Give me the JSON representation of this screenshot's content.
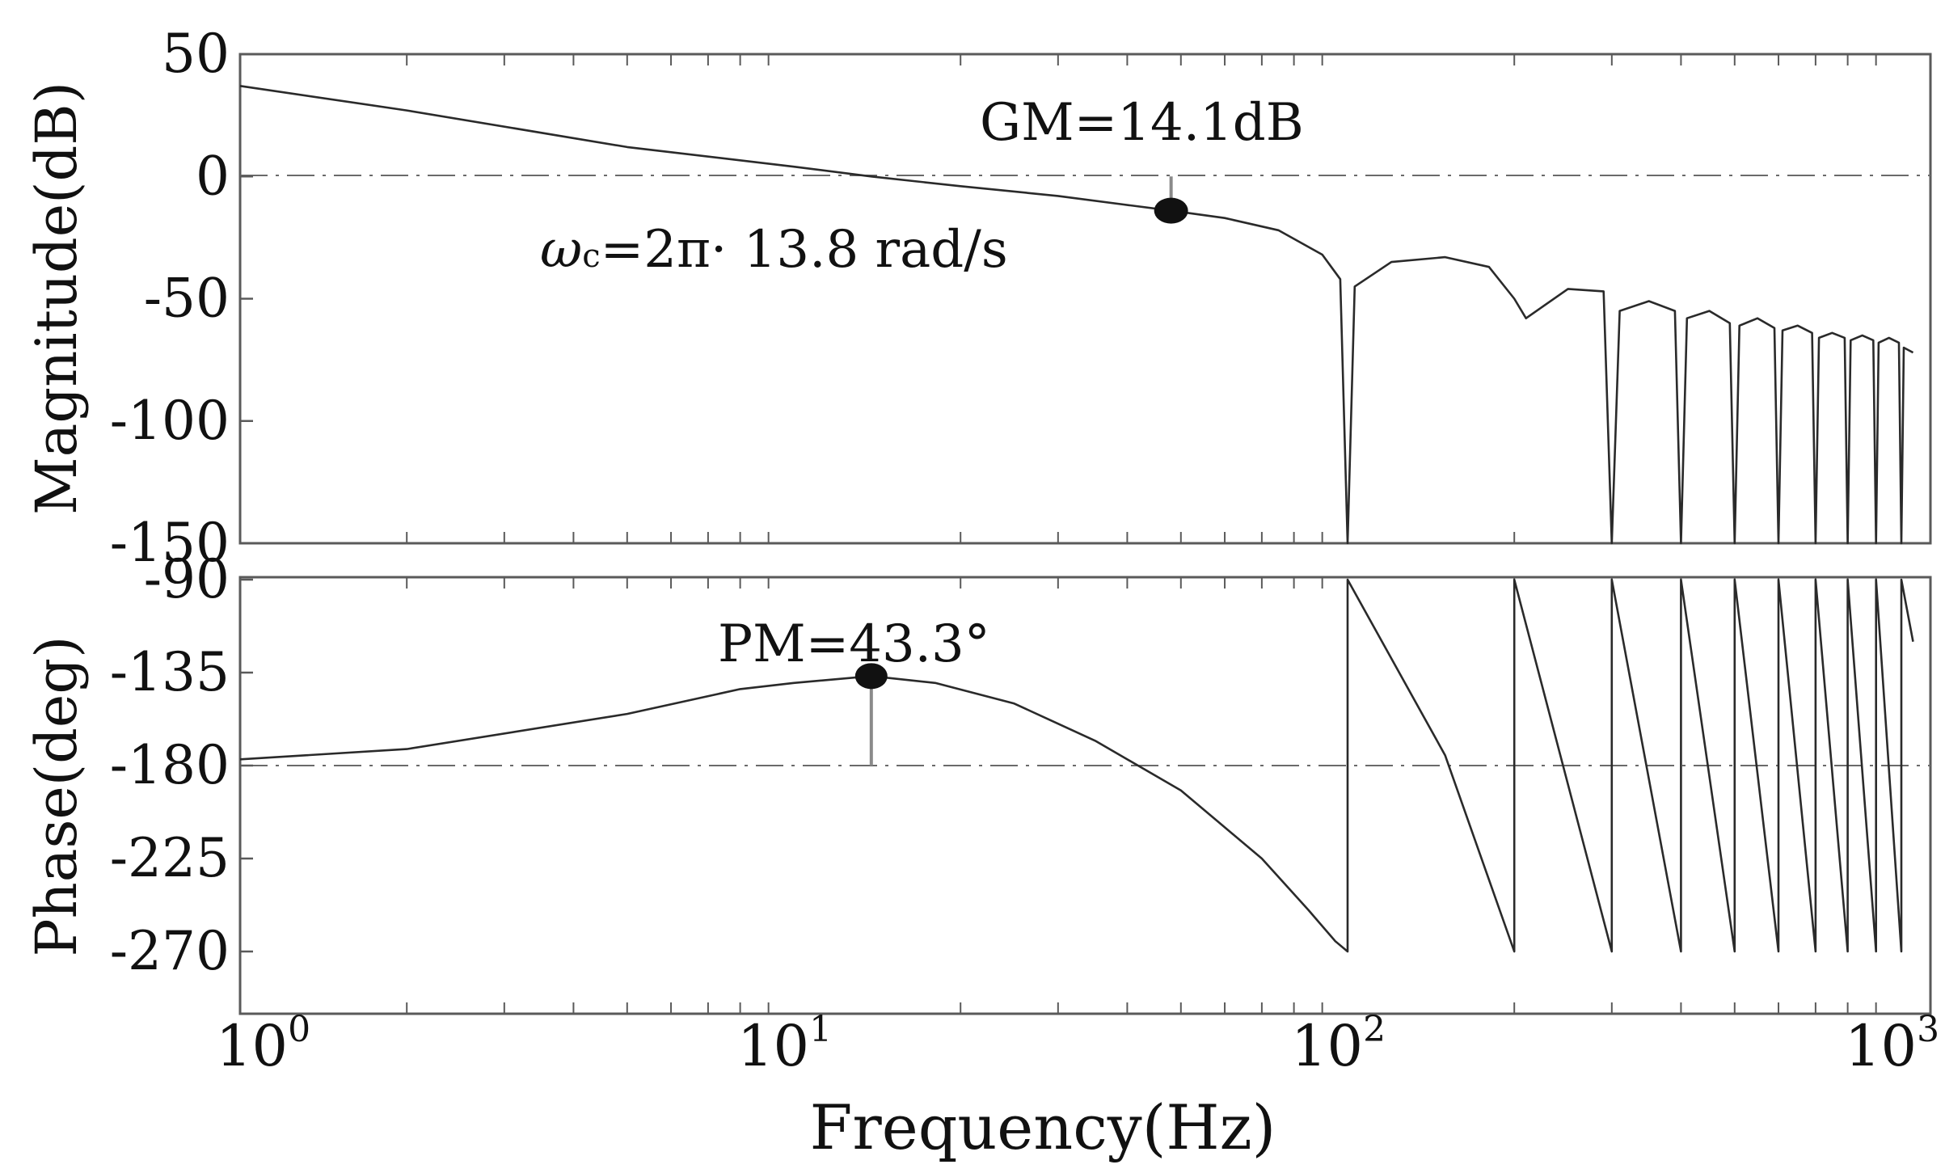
{
  "chart_data": [
    {
      "type": "line",
      "panel": "magnitude",
      "ylabel": "Magnitude(dB)",
      "xscale": "log",
      "xlim": [
        1,
        1000
      ],
      "ylim": [
        -150,
        50
      ],
      "yticks": [
        "50",
        "0",
        "-50",
        "-100",
        "-150"
      ],
      "reference_line_y": 0,
      "series": [
        {
          "x": [
            1,
            2,
            5,
            10,
            13.8,
            20,
            30,
            48,
            60,
            75,
            90,
            97,
            100,
            103,
            120,
            150,
            180,
            200,
            210,
            250,
            290,
            300,
            310,
            350,
            390,
            400,
            410,
            450,
            490,
            500,
            510,
            550,
            590,
            600,
            610,
            650,
            690,
            700,
            710,
            750,
            790,
            800,
            810,
            850,
            890,
            900,
            910,
            950,
            990,
            1000,
            1010,
            1050
          ],
          "y": [
            37,
            27,
            12,
            4,
            0,
            -4,
            -8,
            -14,
            -17,
            -22,
            -32,
            -42,
            -150,
            -45,
            -35,
            -33,
            -37,
            -50,
            -58,
            -46,
            -47,
            -150,
            -55,
            -51,
            -55,
            -150,
            -58,
            -55,
            -60,
            -150,
            -61,
            -58,
            -62,
            -150,
            -63,
            -61,
            -64,
            -150,
            -66,
            -64,
            -66,
            -150,
            -67,
            -65,
            -67,
            -150,
            -68,
            -66,
            -68,
            -150,
            -70,
            -72
          ]
        }
      ],
      "annotations": [
        {
          "text": "GM=14.1dB",
          "x": 48,
          "y": -14
        },
        {
          "text_prefix": "ω",
          "text_sub": "c",
          "text_rest": "=2π· 13.8 rad/s"
        }
      ]
    },
    {
      "type": "line",
      "panel": "phase",
      "ylabel": "Phase(deg)",
      "xlabel": "Frequency(Hz)",
      "xscale": "log",
      "xlim": [
        1,
        1000
      ],
      "ylim": [
        -285,
        -90
      ],
      "yticks": [
        "-90",
        "-135",
        "-180",
        "-225",
        "-270"
      ],
      "xticks": [
        {
          "base": "10",
          "exp": "0"
        },
        {
          "base": "10",
          "exp": "1"
        },
        {
          "base": "10",
          "exp": "2"
        },
        {
          "base": "10",
          "exp": "3"
        }
      ],
      "reference_line_y": -180,
      "series": [
        {
          "x": [
            1,
            2,
            5,
            8,
            10,
            13.8,
            18,
            25,
            35,
            50,
            70,
            85,
            95,
            100,
            100,
            150,
            200,
            200,
            300,
            300,
            400,
            400,
            500,
            500,
            600,
            600,
            700,
            700,
            800,
            800,
            900,
            900,
            1000,
            1000,
            1050
          ],
          "y": [
            -177,
            -172,
            -155,
            -143,
            -140,
            -136.7,
            -140,
            -150,
            -168,
            -192,
            -225,
            -250,
            -265,
            -270,
            -90,
            -175,
            -270,
            -90,
            -270,
            -90,
            -270,
            -90,
            -270,
            -90,
            -270,
            -90,
            -270,
            -90,
            -270,
            -90,
            -270,
            -90,
            -270,
            -90,
            -120
          ]
        }
      ],
      "annotations": [
        {
          "text": "PM=43.3°",
          "x": 13.8,
          "y": -136.7
        }
      ]
    }
  ]
}
